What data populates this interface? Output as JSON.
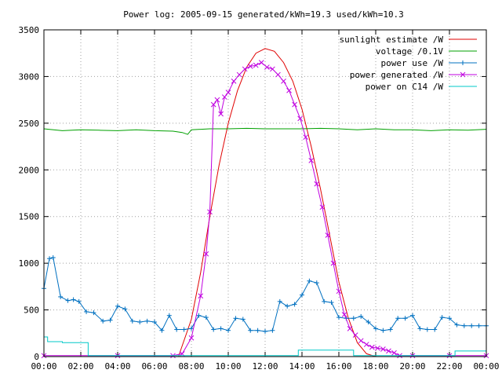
{
  "chart_data": {
    "type": "line",
    "title": "Power log: 2005-09-15 generated/kWh=19.3 used/kWh=10.3",
    "xlabel": "",
    "ylabel": "",
    "x_ticks": [
      "00:00",
      "02:00",
      "04:00",
      "06:00",
      "08:00",
      "10:00",
      "12:00",
      "14:00",
      "16:00",
      "18:00",
      "20:00",
      "22:00",
      "00:00"
    ],
    "y_ticks": [
      "0",
      "500",
      "1000",
      "1500",
      "2000",
      "2500",
      "3000",
      "3500"
    ],
    "xlim_hours": [
      0,
      24
    ],
    "ylim": [
      0,
      3500
    ],
    "grid": true,
    "legend_position": "top-right",
    "series": [
      {
        "name": "sunlight estimate /W",
        "color": "#e00000",
        "marker": "none",
        "x": [
          7.3,
          8.0,
          8.5,
          9.0,
          9.5,
          10.0,
          10.5,
          11.0,
          11.5,
          12.0,
          12.5,
          13.0,
          13.5,
          14.0,
          14.5,
          15.0,
          15.5,
          16.0,
          16.5,
          17.0,
          17.5,
          18.0
        ],
        "y": [
          0,
          400,
          900,
          1500,
          2050,
          2500,
          2850,
          3100,
          3250,
          3300,
          3270,
          3150,
          2950,
          2650,
          2250,
          1800,
          1300,
          800,
          420,
          150,
          30,
          0
        ]
      },
      {
        "name": "voltage /0.1V",
        "color": "#00a000",
        "marker": "none",
        "x": [
          0,
          1,
          2,
          3,
          4,
          5,
          6,
          7,
          7.5,
          7.8,
          8.0,
          9.0,
          10,
          11,
          12,
          13,
          14,
          15,
          16,
          17,
          18,
          19,
          20,
          21,
          22,
          23,
          24
        ],
        "y": [
          2440,
          2420,
          2430,
          2425,
          2420,
          2430,
          2420,
          2415,
          2400,
          2380,
          2430,
          2440,
          2440,
          2445,
          2440,
          2440,
          2440,
          2445,
          2440,
          2430,
          2440,
          2430,
          2430,
          2420,
          2430,
          2425,
          2435
        ]
      },
      {
        "name": "power use /W",
        "color": "#0070c0",
        "marker": "plus",
        "x": [
          0.0,
          0.3,
          0.5,
          0.9,
          1.3,
          1.6,
          1.9,
          2.3,
          2.7,
          3.2,
          3.6,
          4.0,
          4.4,
          4.8,
          5.2,
          5.6,
          6.0,
          6.4,
          6.8,
          7.2,
          7.6,
          8.0,
          8.4,
          8.8,
          9.2,
          9.6,
          10.0,
          10.4,
          10.8,
          11.2,
          11.6,
          12.0,
          12.4,
          12.8,
          13.2,
          13.6,
          14.0,
          14.4,
          14.8,
          15.2,
          15.6,
          16.0,
          16.4,
          16.8,
          17.2,
          17.6,
          18.0,
          18.4,
          18.8,
          19.2,
          19.6,
          20.0,
          20.4,
          20.8,
          21.2,
          21.6,
          22.0,
          22.4,
          22.8,
          23.2,
          23.6,
          24.0
        ],
        "y": [
          730,
          1050,
          1060,
          640,
          600,
          610,
          590,
          480,
          470,
          380,
          390,
          540,
          510,
          380,
          370,
          380,
          370,
          280,
          440,
          290,
          290,
          300,
          440,
          420,
          290,
          300,
          280,
          410,
          400,
          280,
          280,
          270,
          280,
          590,
          540,
          560,
          660,
          810,
          790,
          590,
          580,
          420,
          410,
          410,
          430,
          370,
          300,
          280,
          290,
          410,
          410,
          440,
          300,
          290,
          290,
          420,
          410,
          340,
          330,
          330,
          330,
          330
        ]
      },
      {
        "name": "power generated /W",
        "color": "#c000e0",
        "marker": "x",
        "x": [
          0.0,
          4.0,
          7.0,
          7.5,
          8.0,
          8.5,
          8.8,
          9.0,
          9.2,
          9.4,
          9.6,
          9.8,
          10.0,
          10.3,
          10.6,
          10.9,
          11.2,
          11.5,
          11.8,
          12.1,
          12.4,
          12.7,
          13.0,
          13.3,
          13.6,
          13.9,
          14.2,
          14.5,
          14.8,
          15.1,
          15.4,
          15.7,
          16.0,
          16.3,
          16.6,
          16.9,
          17.2,
          17.5,
          17.8,
          18.1,
          18.4,
          18.7,
          19.0,
          19.3,
          20.0,
          22.0,
          24.0
        ],
        "y": [
          10,
          10,
          10,
          30,
          200,
          650,
          1100,
          1550,
          2700,
          2750,
          2600,
          2780,
          2830,
          2950,
          3020,
          3080,
          3110,
          3120,
          3150,
          3100,
          3080,
          3020,
          2950,
          2850,
          2700,
          2550,
          2350,
          2100,
          1850,
          1600,
          1300,
          1000,
          700,
          450,
          300,
          230,
          170,
          130,
          100,
          90,
          80,
          60,
          40,
          10,
          10,
          10,
          10
        ]
      },
      {
        "name": "power on C14 /W",
        "color": "#00c8c8",
        "marker": "none",
        "x": [
          0.0,
          0.2,
          0.2,
          1.0,
          1.0,
          2.4,
          2.4,
          13.8,
          13.8,
          16.8,
          16.8,
          22.3,
          22.3,
          24.0
        ],
        "y": [
          210,
          210,
          160,
          160,
          150,
          150,
          10,
          10,
          70,
          70,
          10,
          10,
          60,
          60
        ]
      }
    ]
  }
}
